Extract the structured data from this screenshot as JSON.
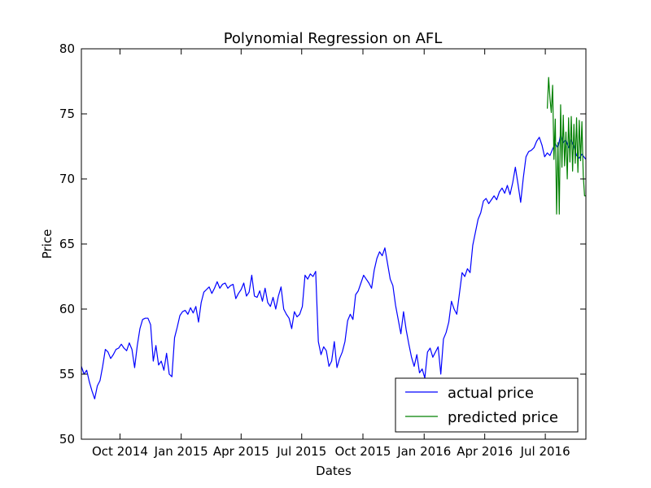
{
  "chart_data": {
    "type": "line",
    "title": "Polynomial Regression on AFL",
    "xlabel": "Dates",
    "ylabel": "Price",
    "ylim": [
      50,
      80
    ],
    "yticks": [
      50,
      55,
      60,
      65,
      70,
      75,
      80
    ],
    "xlim": [
      "2014-08-04",
      "2016-08-31"
    ],
    "xticks": [
      {
        "date": "2014-10-01",
        "label": "Oct 2014"
      },
      {
        "date": "2015-01-01",
        "label": "Jan 2015"
      },
      {
        "date": "2015-04-01",
        "label": "Apr 2015"
      },
      {
        "date": "2015-07-01",
        "label": "Jul 2015"
      },
      {
        "date": "2015-10-01",
        "label": "Oct 2015"
      },
      {
        "date": "2016-01-01",
        "label": "Jan 2016"
      },
      {
        "date": "2016-04-01",
        "label": "Apr 2016"
      },
      {
        "date": "2016-07-01",
        "label": "Jul 2016"
      }
    ],
    "grid": false,
    "legend": "lower-right",
    "series": [
      {
        "name": "actual price",
        "color": "#0000ff",
        "points": [
          [
            "2014-08-04",
            55.6
          ],
          [
            "2014-08-08",
            55.0
          ],
          [
            "2014-08-12",
            55.3
          ],
          [
            "2014-08-16",
            54.4
          ],
          [
            "2014-08-20",
            53.7
          ],
          [
            "2014-08-24",
            53.1
          ],
          [
            "2014-08-28",
            54.1
          ],
          [
            "2014-09-01",
            54.5
          ],
          [
            "2014-09-05",
            55.6
          ],
          [
            "2014-09-09",
            56.9
          ],
          [
            "2014-09-13",
            56.7
          ],
          [
            "2014-09-17",
            56.2
          ],
          [
            "2014-09-21",
            56.5
          ],
          [
            "2014-09-25",
            56.9
          ],
          [
            "2014-09-29",
            57.0
          ],
          [
            "2014-10-03",
            57.3
          ],
          [
            "2014-10-07",
            57.0
          ],
          [
            "2014-10-11",
            56.8
          ],
          [
            "2014-10-15",
            57.4
          ],
          [
            "2014-10-19",
            56.9
          ],
          [
            "2014-10-23",
            55.5
          ],
          [
            "2014-10-27",
            57.2
          ],
          [
            "2014-10-31",
            58.5
          ],
          [
            "2014-11-04",
            59.2
          ],
          [
            "2014-11-08",
            59.3
          ],
          [
            "2014-11-12",
            59.3
          ],
          [
            "2014-11-16",
            58.8
          ],
          [
            "2014-11-20",
            56.0
          ],
          [
            "2014-11-24",
            57.2
          ],
          [
            "2014-11-28",
            55.7
          ],
          [
            "2014-12-02",
            56.0
          ],
          [
            "2014-12-06",
            55.3
          ],
          [
            "2014-12-10",
            56.6
          ],
          [
            "2014-12-14",
            55.0
          ],
          [
            "2014-12-18",
            54.8
          ],
          [
            "2014-12-22",
            57.8
          ],
          [
            "2014-12-26",
            58.6
          ],
          [
            "2014-12-30",
            59.5
          ],
          [
            "2015-01-03",
            59.8
          ],
          [
            "2015-01-07",
            59.9
          ],
          [
            "2015-01-11",
            59.6
          ],
          [
            "2015-01-15",
            60.1
          ],
          [
            "2015-01-19",
            59.7
          ],
          [
            "2015-01-23",
            60.2
          ],
          [
            "2015-01-27",
            59.0
          ],
          [
            "2015-01-31",
            60.5
          ],
          [
            "2015-02-04",
            61.3
          ],
          [
            "2015-02-08",
            61.5
          ],
          [
            "2015-02-12",
            61.7
          ],
          [
            "2015-02-16",
            61.2
          ],
          [
            "2015-02-20",
            61.6
          ],
          [
            "2015-02-24",
            62.1
          ],
          [
            "2015-02-28",
            61.6
          ],
          [
            "2015-03-04",
            61.9
          ],
          [
            "2015-03-08",
            62.0
          ],
          [
            "2015-03-12",
            61.6
          ],
          [
            "2015-03-16",
            61.8
          ],
          [
            "2015-03-20",
            61.9
          ],
          [
            "2015-03-24",
            60.8
          ],
          [
            "2015-03-28",
            61.2
          ],
          [
            "2015-04-01",
            61.5
          ],
          [
            "2015-04-05",
            62.0
          ],
          [
            "2015-04-09",
            61.0
          ],
          [
            "2015-04-13",
            61.3
          ],
          [
            "2015-04-17",
            62.6
          ],
          [
            "2015-04-21",
            61.0
          ],
          [
            "2015-04-25",
            60.9
          ],
          [
            "2015-04-29",
            61.4
          ],
          [
            "2015-05-03",
            60.6
          ],
          [
            "2015-05-07",
            61.6
          ],
          [
            "2015-05-11",
            60.5
          ],
          [
            "2015-05-15",
            60.2
          ],
          [
            "2015-05-19",
            60.9
          ],
          [
            "2015-05-23",
            60.0
          ],
          [
            "2015-05-27",
            61.0
          ],
          [
            "2015-05-31",
            61.7
          ],
          [
            "2015-06-04",
            60.0
          ],
          [
            "2015-06-08",
            59.6
          ],
          [
            "2015-06-12",
            59.3
          ],
          [
            "2015-06-16",
            58.5
          ],
          [
            "2015-06-20",
            59.8
          ],
          [
            "2015-06-24",
            59.4
          ],
          [
            "2015-06-28",
            59.6
          ],
          [
            "2015-07-02",
            60.2
          ],
          [
            "2015-07-06",
            62.6
          ],
          [
            "2015-07-10",
            62.3
          ],
          [
            "2015-07-14",
            62.7
          ],
          [
            "2015-07-18",
            62.5
          ],
          [
            "2015-07-22",
            62.9
          ],
          [
            "2015-07-26",
            57.5
          ],
          [
            "2015-07-30",
            56.5
          ],
          [
            "2015-08-03",
            57.1
          ],
          [
            "2015-08-07",
            56.8
          ],
          [
            "2015-08-11",
            55.6
          ],
          [
            "2015-08-15",
            56.0
          ],
          [
            "2015-08-19",
            57.5
          ],
          [
            "2015-08-23",
            55.5
          ],
          [
            "2015-08-27",
            56.2
          ],
          [
            "2015-08-31",
            56.7
          ],
          [
            "2015-09-04",
            57.5
          ],
          [
            "2015-09-08",
            59.1
          ],
          [
            "2015-09-12",
            59.6
          ],
          [
            "2015-09-16",
            59.2
          ],
          [
            "2015-09-20",
            61.1
          ],
          [
            "2015-09-24",
            61.4
          ],
          [
            "2015-09-28",
            62.0
          ],
          [
            "2015-10-02",
            62.6
          ],
          [
            "2015-10-06",
            62.3
          ],
          [
            "2015-10-10",
            62.0
          ],
          [
            "2015-10-14",
            61.6
          ],
          [
            "2015-10-18",
            63.0
          ],
          [
            "2015-10-22",
            63.9
          ],
          [
            "2015-10-26",
            64.4
          ],
          [
            "2015-10-30",
            64.1
          ],
          [
            "2015-11-03",
            64.7
          ],
          [
            "2015-11-07",
            63.5
          ],
          [
            "2015-11-11",
            62.3
          ],
          [
            "2015-11-15",
            61.8
          ],
          [
            "2015-11-19",
            60.3
          ],
          [
            "2015-11-23",
            59.2
          ],
          [
            "2015-11-27",
            58.1
          ],
          [
            "2015-12-01",
            59.8
          ],
          [
            "2015-12-05",
            58.4
          ],
          [
            "2015-12-09",
            57.3
          ],
          [
            "2015-12-13",
            56.3
          ],
          [
            "2015-12-17",
            55.6
          ],
          [
            "2015-12-21",
            56.5
          ],
          [
            "2015-12-25",
            55.1
          ],
          [
            "2015-12-29",
            55.4
          ],
          [
            "2016-01-02",
            54.7
          ],
          [
            "2016-01-06",
            56.7
          ],
          [
            "2016-01-10",
            57.0
          ],
          [
            "2016-01-14",
            56.3
          ],
          [
            "2016-01-18",
            56.7
          ],
          [
            "2016-01-22",
            57.1
          ],
          [
            "2016-01-26",
            55.0
          ],
          [
            "2016-01-30",
            57.7
          ],
          [
            "2016-02-03",
            58.2
          ],
          [
            "2016-02-07",
            59.0
          ],
          [
            "2016-02-11",
            60.6
          ],
          [
            "2016-02-15",
            60.0
          ],
          [
            "2016-02-19",
            59.6
          ],
          [
            "2016-02-23",
            61.2
          ],
          [
            "2016-02-27",
            62.8
          ],
          [
            "2016-03-02",
            62.5
          ],
          [
            "2016-03-06",
            63.1
          ],
          [
            "2016-03-10",
            62.8
          ],
          [
            "2016-03-14",
            64.9
          ],
          [
            "2016-03-18",
            65.9
          ],
          [
            "2016-03-22",
            66.9
          ],
          [
            "2016-03-26",
            67.4
          ],
          [
            "2016-03-30",
            68.3
          ],
          [
            "2016-04-03",
            68.5
          ],
          [
            "2016-04-07",
            68.1
          ],
          [
            "2016-04-11",
            68.4
          ],
          [
            "2016-04-15",
            68.7
          ],
          [
            "2016-04-19",
            68.4
          ],
          [
            "2016-04-23",
            69.0
          ],
          [
            "2016-04-27",
            69.3
          ],
          [
            "2016-05-01",
            68.9
          ],
          [
            "2016-05-05",
            69.5
          ],
          [
            "2016-05-09",
            68.8
          ],
          [
            "2016-05-13",
            69.7
          ],
          [
            "2016-05-17",
            70.9
          ],
          [
            "2016-05-21",
            69.6
          ],
          [
            "2016-05-25",
            68.2
          ],
          [
            "2016-05-29",
            70.1
          ],
          [
            "2016-06-02",
            71.7
          ],
          [
            "2016-06-06",
            72.1
          ],
          [
            "2016-06-10",
            72.2
          ],
          [
            "2016-06-14",
            72.4
          ],
          [
            "2016-06-18",
            72.9
          ],
          [
            "2016-06-22",
            73.2
          ],
          [
            "2016-06-26",
            72.6
          ],
          [
            "2016-06-30",
            71.7
          ],
          [
            "2016-07-04",
            72.0
          ],
          [
            "2016-07-08",
            71.8
          ],
          [
            "2016-07-12",
            72.3
          ],
          [
            "2016-07-16",
            72.7
          ],
          [
            "2016-07-20",
            72.4
          ],
          [
            "2016-07-24",
            73.4
          ],
          [
            "2016-07-28",
            72.8
          ],
          [
            "2016-08-01",
            73.0
          ],
          [
            "2016-08-05",
            72.4
          ],
          [
            "2016-08-09",
            73.0
          ],
          [
            "2016-08-13",
            72.5
          ],
          [
            "2016-08-17",
            71.8
          ],
          [
            "2016-08-21",
            71.6
          ],
          [
            "2016-08-25",
            71.9
          ],
          [
            "2016-08-31",
            71.5
          ]
        ]
      },
      {
        "name": "predicted price",
        "color": "#008000",
        "points": [
          [
            "2016-07-04",
            75.4
          ],
          [
            "2016-07-06",
            77.8
          ],
          [
            "2016-07-08",
            76.2
          ],
          [
            "2016-07-10",
            75.1
          ],
          [
            "2016-07-12",
            77.2
          ],
          [
            "2016-07-14",
            71.5
          ],
          [
            "2016-07-16",
            74.6
          ],
          [
            "2016-07-18",
            67.3
          ],
          [
            "2016-07-20",
            72.8
          ],
          [
            "2016-07-22",
            67.3
          ],
          [
            "2016-07-24",
            75.7
          ],
          [
            "2016-07-26",
            70.9
          ],
          [
            "2016-07-28",
            74.9
          ],
          [
            "2016-07-30",
            71.0
          ],
          [
            "2016-08-01",
            73.6
          ],
          [
            "2016-08-03",
            70.0
          ],
          [
            "2016-08-05",
            74.7
          ],
          [
            "2016-08-07",
            71.3
          ],
          [
            "2016-08-09",
            74.8
          ],
          [
            "2016-08-11",
            70.6
          ],
          [
            "2016-08-13",
            74.2
          ],
          [
            "2016-08-15",
            71.2
          ],
          [
            "2016-08-17",
            74.7
          ],
          [
            "2016-08-19",
            70.5
          ],
          [
            "2016-08-21",
            74.5
          ],
          [
            "2016-08-23",
            71.4
          ],
          [
            "2016-08-25",
            74.4
          ],
          [
            "2016-08-27",
            70.3
          ],
          [
            "2016-08-29",
            68.7
          ],
          [
            "2016-08-31",
            68.7
          ]
        ]
      }
    ]
  }
}
